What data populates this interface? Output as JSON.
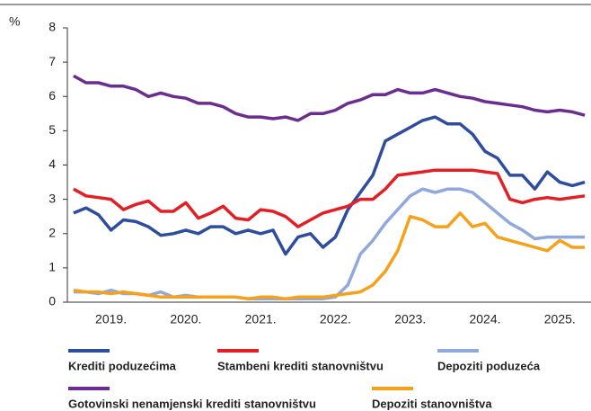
{
  "chart_data": {
    "type": "line",
    "y_label": "%",
    "categories": [
      null,
      null,
      null,
      "2019.",
      null,
      null,
      null,
      null,
      null,
      "2020.",
      null,
      null,
      null,
      null,
      null,
      "2021.",
      null,
      null,
      null,
      null,
      null,
      "2022.",
      null,
      null,
      null,
      null,
      null,
      "2023.",
      null,
      null,
      null,
      null,
      null,
      "2024.",
      null,
      null,
      null,
      null,
      null,
      "2025.",
      null,
      null
    ],
    "ylim": [
      0,
      8
    ],
    "yticks": [
      0,
      1,
      2,
      3,
      4,
      5,
      6,
      7,
      8
    ],
    "grid": false,
    "series": [
      {
        "name": "Krediti poduzećima",
        "color": "#2e4d9e",
        "values": [
          2.6,
          2.75,
          2.55,
          2.1,
          2.4,
          2.35,
          2.2,
          1.95,
          2.0,
          2.1,
          2.0,
          2.2,
          2.2,
          2.0,
          2.1,
          2.0,
          2.1,
          1.4,
          1.9,
          2.0,
          1.6,
          1.9,
          2.7,
          3.2,
          3.7,
          4.7,
          4.9,
          5.1,
          5.3,
          5.4,
          5.2,
          5.2,
          4.9,
          4.4,
          4.2,
          3.7,
          3.7,
          3.3,
          3.8,
          3.5,
          3.4,
          3.5
        ]
      },
      {
        "name": "Stambeni krediti stanovništvu",
        "color": "#e31e24",
        "values": [
          3.3,
          3.1,
          3.05,
          3.0,
          2.7,
          2.85,
          2.95,
          2.65,
          2.65,
          2.9,
          2.45,
          2.6,
          2.8,
          2.45,
          2.4,
          2.7,
          2.65,
          2.5,
          2.2,
          2.4,
          2.6,
          2.7,
          2.8,
          3.0,
          3.0,
          3.3,
          3.7,
          3.75,
          3.8,
          3.85,
          3.85,
          3.85,
          3.85,
          3.8,
          3.75,
          3.0,
          2.9,
          3.0,
          3.05,
          3.0,
          3.05,
          3.1
        ]
      },
      {
        "name": "Depoziti poduzeća",
        "color": "#8fa9dc",
        "values": [
          0.3,
          0.3,
          0.25,
          0.35,
          0.25,
          0.25,
          0.2,
          0.3,
          0.15,
          0.2,
          0.15,
          0.15,
          0.15,
          0.15,
          0.1,
          0.1,
          0.1,
          0.1,
          0.1,
          0.1,
          0.1,
          0.15,
          0.5,
          1.4,
          1.8,
          2.3,
          2.7,
          3.1,
          3.3,
          3.2,
          3.3,
          3.3,
          3.2,
          2.9,
          2.6,
          2.3,
          2.1,
          1.85,
          1.9,
          1.9,
          1.9,
          1.9
        ]
      },
      {
        "name": "Gotovinski nenamjenski krediti stanovništvu",
        "color": "#6b2d8f",
        "values": [
          6.6,
          6.4,
          6.4,
          6.3,
          6.3,
          6.2,
          6.0,
          6.1,
          6.0,
          5.95,
          5.8,
          5.8,
          5.7,
          5.5,
          5.4,
          5.4,
          5.35,
          5.4,
          5.3,
          5.5,
          5.5,
          5.6,
          5.8,
          5.9,
          6.05,
          6.05,
          6.2,
          6.1,
          6.1,
          6.2,
          6.1,
          6.0,
          5.95,
          5.85,
          5.8,
          5.75,
          5.7,
          5.6,
          5.55,
          5.6,
          5.55,
          5.45
        ]
      },
      {
        "name": "Depoziti stanovništva",
        "color": "#f7a11a",
        "values": [
          0.35,
          0.3,
          0.3,
          0.25,
          0.3,
          0.25,
          0.2,
          0.15,
          0.15,
          0.15,
          0.15,
          0.15,
          0.15,
          0.15,
          0.1,
          0.15,
          0.15,
          0.1,
          0.15,
          0.15,
          0.15,
          0.2,
          0.25,
          0.3,
          0.5,
          0.9,
          1.5,
          2.5,
          2.4,
          2.2,
          2.2,
          2.6,
          2.2,
          2.3,
          1.9,
          1.8,
          1.7,
          1.6,
          1.5,
          1.8,
          1.6,
          1.6
        ]
      }
    ]
  }
}
